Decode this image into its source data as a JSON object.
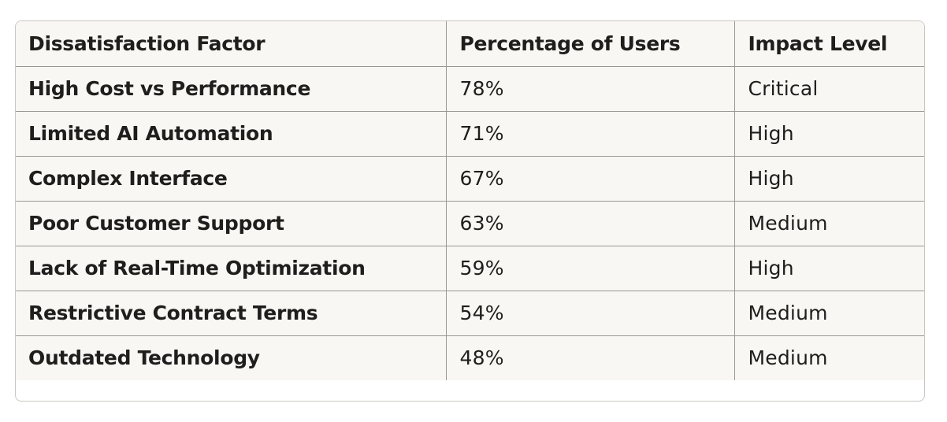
{
  "table": {
    "headers": [
      "Dissatisfaction Factor",
      "Percentage of Users",
      "Impact Level"
    ],
    "rows": [
      [
        "High Cost vs Performance",
        "78%",
        "Critical"
      ],
      [
        "Limited AI Automation",
        "71%",
        "High"
      ],
      [
        "Complex Interface",
        "67%",
        "High"
      ],
      [
        "Poor Customer Support",
        "63%",
        "Medium"
      ],
      [
        "Lack of Real-Time Optimization",
        "59%",
        "High"
      ],
      [
        "Restrictive Contract Terms",
        "54%",
        "Medium"
      ],
      [
        "Outdated Technology",
        "48%",
        "Medium"
      ]
    ]
  }
}
